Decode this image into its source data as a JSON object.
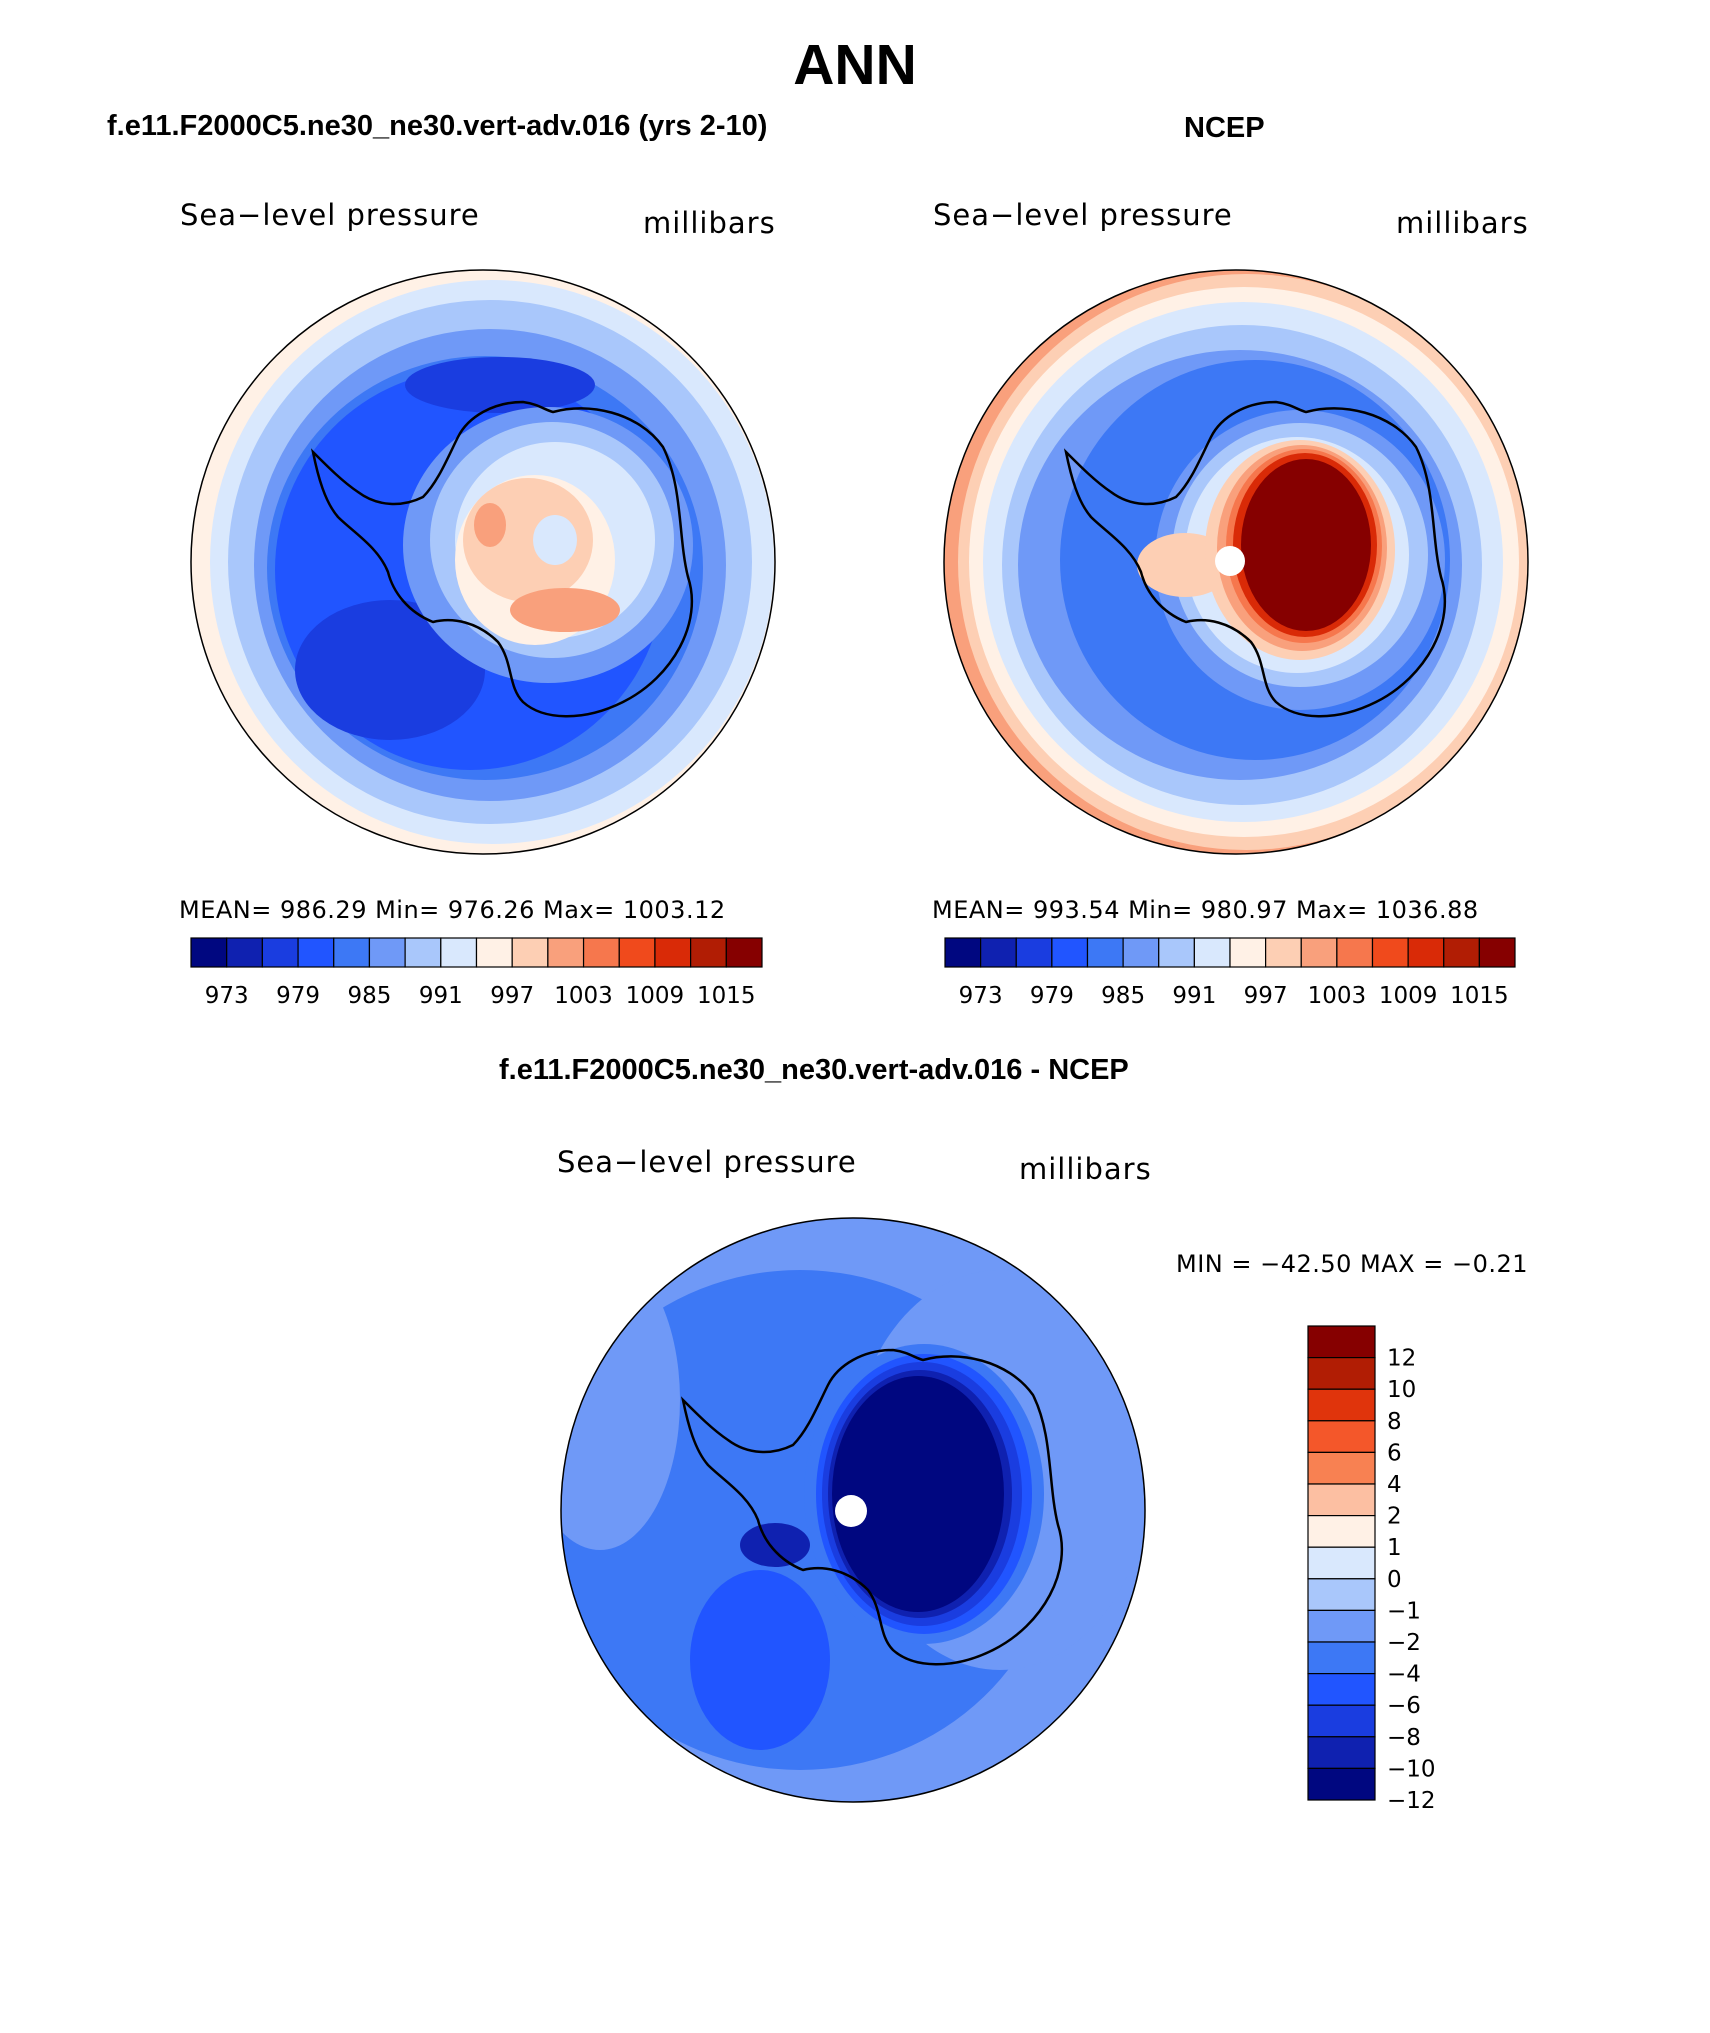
{
  "title": "ANN",
  "panels": [
    {
      "title": "f.e11.F2000C5.ne30_ne30.vert-adv.016 (yrs 2-10)",
      "variable": "Sea−level pressure",
      "units": "millibars",
      "stats": "MEAN=  986.29    Min=  976.26    Max=  1003.12",
      "colorbar": {
        "colors": [
          "#000780",
          "#0f21b0",
          "#1a3de0",
          "#2155ff",
          "#3d78f5",
          "#6f99f7",
          "#a9c7fb",
          "#d9e8fd",
          "#fff1e6",
          "#fdcfb4",
          "#f9a07c",
          "#f6774d",
          "#f04a1c",
          "#d92a07",
          "#b11d04",
          "#860000"
        ],
        "ticks": [
          "973",
          "979",
          "985",
          "991",
          "997",
          "1003",
          "1009",
          "1015"
        ]
      }
    },
    {
      "title": "NCEP",
      "variable": "Sea−level pressure",
      "units": "millibars",
      "stats": "MEAN=  993.54    Min=  980.97    Max=  1036.88",
      "colorbar": {
        "colors": [
          "#000780",
          "#0f21b0",
          "#1a3de0",
          "#2155ff",
          "#3d78f5",
          "#6f99f7",
          "#a9c7fb",
          "#d9e8fd",
          "#fff1e6",
          "#fdcfb4",
          "#f9a07c",
          "#f6774d",
          "#f04a1c",
          "#d92a07",
          "#b11d04",
          "#860000"
        ],
        "ticks": [
          "973",
          "979",
          "985",
          "991",
          "997",
          "1003",
          "1009",
          "1015"
        ]
      }
    },
    {
      "title": "f.e11.F2000C5.ne30_ne30.vert-adv.016 - NCEP",
      "variable": "Sea−level pressure",
      "units": "millibars",
      "stats": "MIN  =  −42.50  MAX  =    −0.21",
      "colorbar": {
        "colors": [
          "#860000",
          "#b11d04",
          "#e0340c",
          "#f4572a",
          "#f88152",
          "#fcbfa2",
          "#fff1e6",
          "#d9e8fd",
          "#a9c7fb",
          "#6f99f7",
          "#3d78f5",
          "#2155ff",
          "#1a3de0",
          "#0f21b0",
          "#000780"
        ],
        "ticks": [
          "12",
          "10",
          "8",
          "6",
          "4",
          "2",
          "1",
          "0",
          "−1",
          "−2",
          "−4",
          "−6",
          "−8",
          "−10",
          "−12"
        ]
      }
    }
  ]
}
